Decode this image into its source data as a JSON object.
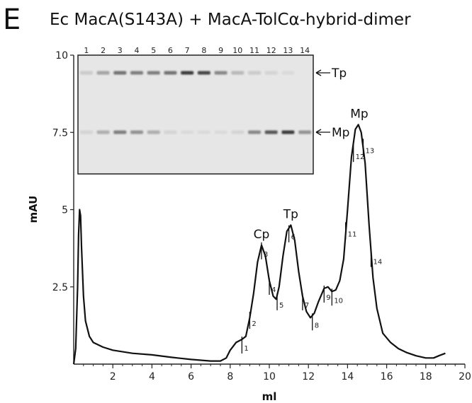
{
  "panel_letter": "E",
  "title": "Ec MacA(S143A)  + MacA-TolCα-hybrid-dimer",
  "chart_data": {
    "type": "line",
    "xlabel": "ml",
    "ylabel": "mAU",
    "xlim": [
      0,
      20
    ],
    "ylim": [
      0,
      10
    ],
    "x_ticks": [
      2,
      4,
      6,
      8,
      10,
      12,
      14,
      16,
      18,
      20
    ],
    "x_tick_labels": [
      "2",
      "4",
      "6",
      "8",
      "10",
      "12",
      "14",
      "16",
      "18",
      "20"
    ],
    "y_ticks": [
      2.5,
      5,
      7.5,
      10
    ],
    "y_tick_labels": [
      "2.5",
      "5",
      "7.5",
      "10"
    ],
    "grid": false,
    "series": [
      {
        "points": [
          [
            0.0,
            0.0
          ],
          [
            0.1,
            0.5
          ],
          [
            0.2,
            2.5
          ],
          [
            0.25,
            4.2
          ],
          [
            0.3,
            5.0
          ],
          [
            0.35,
            4.8
          ],
          [
            0.4,
            3.8
          ],
          [
            0.5,
            2.2
          ],
          [
            0.6,
            1.4
          ],
          [
            0.8,
            0.9
          ],
          [
            1.0,
            0.7
          ],
          [
            1.5,
            0.55
          ],
          [
            2.0,
            0.45
          ],
          [
            3.0,
            0.35
          ],
          [
            4.0,
            0.3
          ],
          [
            5.0,
            0.22
          ],
          [
            6.0,
            0.15
          ],
          [
            7.0,
            0.1
          ],
          [
            7.5,
            0.1
          ],
          [
            7.8,
            0.2
          ],
          [
            8.0,
            0.45
          ],
          [
            8.3,
            0.7
          ],
          [
            8.6,
            0.8
          ],
          [
            8.8,
            0.9
          ],
          [
            9.0,
            1.5
          ],
          [
            9.2,
            2.3
          ],
          [
            9.4,
            3.3
          ],
          [
            9.6,
            3.85
          ],
          [
            9.8,
            3.5
          ],
          [
            10.0,
            2.7
          ],
          [
            10.2,
            2.2
          ],
          [
            10.35,
            2.1
          ],
          [
            10.5,
            2.5
          ],
          [
            10.7,
            3.5
          ],
          [
            10.9,
            4.3
          ],
          [
            11.1,
            4.5
          ],
          [
            11.3,
            4.0
          ],
          [
            11.5,
            3.0
          ],
          [
            11.7,
            2.2
          ],
          [
            11.9,
            1.7
          ],
          [
            12.1,
            1.5
          ],
          [
            12.3,
            1.65
          ],
          [
            12.5,
            2.0
          ],
          [
            12.8,
            2.45
          ],
          [
            13.0,
            2.5
          ],
          [
            13.2,
            2.35
          ],
          [
            13.4,
            2.4
          ],
          [
            13.6,
            2.7
          ],
          [
            13.8,
            3.4
          ],
          [
            14.0,
            5.0
          ],
          [
            14.2,
            6.7
          ],
          [
            14.4,
            7.6
          ],
          [
            14.55,
            7.75
          ],
          [
            14.7,
            7.5
          ],
          [
            14.9,
            6.5
          ],
          [
            15.1,
            4.5
          ],
          [
            15.3,
            2.8
          ],
          [
            15.5,
            1.8
          ],
          [
            15.8,
            1.0
          ],
          [
            16.2,
            0.7
          ],
          [
            16.6,
            0.5
          ],
          [
            17.0,
            0.38
          ],
          [
            17.5,
            0.27
          ],
          [
            18.0,
            0.2
          ],
          [
            18.4,
            0.2
          ],
          [
            18.7,
            0.28
          ],
          [
            19.0,
            0.35
          ]
        ]
      }
    ],
    "fraction_marks": [
      {
        "label": "1",
        "x": 8.6,
        "top": 0.8
      },
      {
        "label": "2",
        "x": 9.0,
        "top": 1.6
      },
      {
        "label": "3",
        "x": 9.6,
        "top": 3.85
      },
      {
        "label": "4",
        "x": 10.0,
        "top": 2.7
      },
      {
        "label": "5",
        "x": 10.4,
        "top": 2.2
      },
      {
        "label": "6",
        "x": 11.0,
        "top": 4.4
      },
      {
        "label": "7",
        "x": 11.7,
        "top": 2.2
      },
      {
        "label": "8",
        "x": 12.2,
        "top": 1.55
      },
      {
        "label": "9",
        "x": 12.8,
        "top": 2.45
      },
      {
        "label": "10",
        "x": 13.2,
        "top": 2.35
      },
      {
        "label": "11",
        "x": 13.9,
        "top": 4.5
      },
      {
        "label": "12",
        "x": 14.3,
        "top": 7.0
      },
      {
        "label": "13",
        "x": 14.8,
        "top": 7.2
      },
      {
        "label": "14",
        "x": 15.2,
        "top": 3.6
      }
    ],
    "peak_labels": [
      {
        "label": "Cp",
        "x": 9.6,
        "y": 3.85
      },
      {
        "label": "Tp",
        "x": 11.1,
        "y": 4.5
      },
      {
        "label": "Mp",
        "x": 14.6,
        "y": 7.75
      }
    ],
    "inset_gel": {
      "lane_labels": [
        "1",
        "2",
        "3",
        "4",
        "5",
        "6",
        "7",
        "8",
        "9",
        "10",
        "11",
        "12",
        "13",
        "14"
      ],
      "band_labels": [
        "Tp",
        "Mp"
      ],
      "tp_band_intensity": [
        0.15,
        0.35,
        0.6,
        0.55,
        0.55,
        0.6,
        0.9,
        0.85,
        0.5,
        0.25,
        0.15,
        0.1,
        0.05,
        0.0
      ],
      "mp_band_intensity": [
        0.1,
        0.3,
        0.55,
        0.45,
        0.3,
        0.1,
        0.05,
        0.05,
        0.05,
        0.08,
        0.5,
        0.75,
        0.9,
        0.45
      ]
    }
  }
}
